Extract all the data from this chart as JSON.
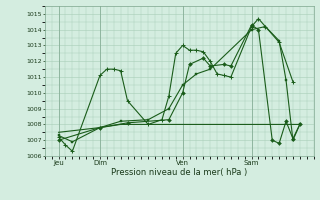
{
  "title": "Pression niveau de la mer( hPa )",
  "bg_color": "#d4ede0",
  "grid_color": "#a8cdb8",
  "line_color": "#1a5c1a",
  "ylim": [
    1006,
    1015.5
  ],
  "yticks": [
    1006,
    1007,
    1008,
    1009,
    1010,
    1011,
    1012,
    1013,
    1014,
    1015
  ],
  "day_labels": [
    "Jeu",
    "Dim",
    "Ven",
    "Sam"
  ],
  "day_positions": [
    0.5,
    3.5,
    9.5,
    14.5
  ],
  "xlim": [
    -0.5,
    19.0
  ],
  "series1_x": [
    0.5,
    1.0,
    1.5,
    3.5,
    4.0,
    4.5,
    5.0,
    5.5,
    7.0,
    8.0,
    8.5,
    9.0,
    9.5,
    10.0,
    10.5,
    11.0,
    11.5,
    12.0,
    12.5,
    13.0,
    14.5,
    15.0,
    15.5,
    16.5,
    17.5
  ],
  "series1_y": [
    1007.2,
    1006.7,
    1006.3,
    1011.1,
    1011.5,
    1011.5,
    1011.4,
    1009.5,
    1008.0,
    1008.3,
    1009.8,
    1012.5,
    1013.0,
    1012.7,
    1012.7,
    1012.6,
    1012.0,
    1011.2,
    1011.1,
    1011.0,
    1014.2,
    1014.7,
    1014.2,
    1013.2,
    1010.7
  ],
  "series2_x": [
    0.5,
    3.5,
    5.0,
    7.0,
    8.5,
    9.5,
    10.5,
    11.5,
    14.5,
    18.0
  ],
  "series2_y": [
    1007.5,
    1007.8,
    1008.0,
    1008.0,
    1008.0,
    1008.0,
    1008.0,
    1008.0,
    1008.0,
    1008.0
  ],
  "series3_x": [
    0.5,
    3.5,
    5.5,
    8.5,
    9.5,
    10.0,
    11.0,
    11.5,
    12.5,
    13.0,
    14.5,
    15.0,
    16.0,
    16.5,
    17.0,
    17.5,
    18.0
  ],
  "series3_y": [
    1007.0,
    1007.8,
    1008.1,
    1008.3,
    1010.0,
    1011.8,
    1012.2,
    1011.7,
    1011.8,
    1011.7,
    1014.3,
    1014.0,
    1007.0,
    1006.8,
    1008.2,
    1007.1,
    1008.0
  ],
  "series4_x": [
    0.5,
    1.5,
    3.5,
    5.0,
    7.0,
    8.5,
    9.5,
    10.5,
    11.5,
    14.5,
    15.5,
    16.5,
    17.0,
    17.5,
    18.0
  ],
  "series4_y": [
    1007.3,
    1006.9,
    1007.8,
    1008.2,
    1008.3,
    1009.0,
    1010.5,
    1011.2,
    1011.5,
    1014.0,
    1014.2,
    1013.3,
    1010.8,
    1007.0,
    1008.0
  ]
}
